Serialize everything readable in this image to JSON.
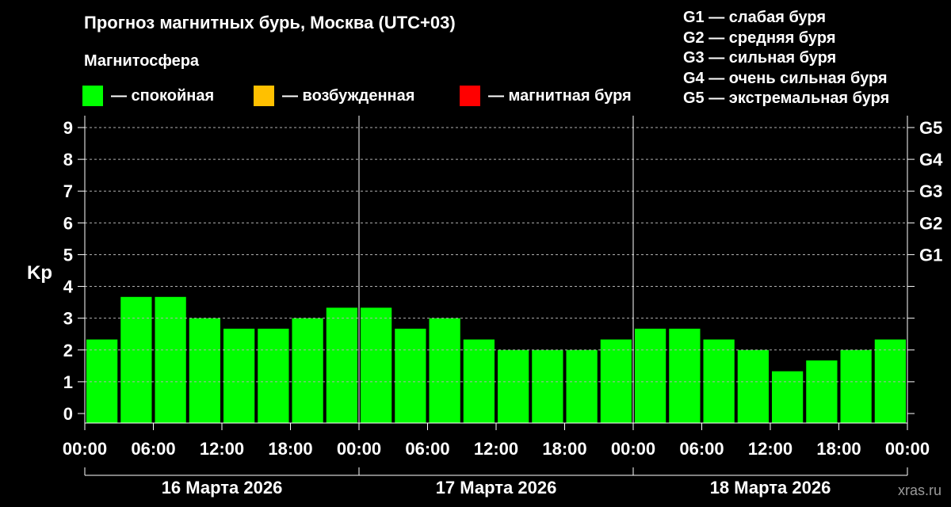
{
  "header": {
    "title": "Прогноз магнитных бурь, Москва (UTC+03)",
    "subtitle": "Магнитосфера"
  },
  "legend": [
    {
      "label": "— спокойная",
      "color": "#00ff00"
    },
    {
      "label": "— возбужденная",
      "color": "#ffc000"
    },
    {
      "label": "— магнитная буря",
      "color": "#ff0000"
    }
  ],
  "storm_scale": [
    "G1 — слабая буря",
    "G2 — средняя буря",
    "G3 — сильная буря",
    "G4 — очень сильная буря",
    "G5 — экстремальная буря"
  ],
  "watermark": "xras.ru",
  "chart_data": {
    "type": "bar",
    "ylabel": "Kp",
    "ylim": [
      0,
      9
    ],
    "yticks": [
      "0",
      "1",
      "2",
      "3",
      "4",
      "5",
      "6",
      "7",
      "8",
      "9"
    ],
    "right_ticks": [
      {
        "kp": 5,
        "label": "G1"
      },
      {
        "kp": 6,
        "label": "G2"
      },
      {
        "kp": 7,
        "label": "G3"
      },
      {
        "kp": 8,
        "label": "G4"
      },
      {
        "kp": 9,
        "label": "G5"
      }
    ],
    "xtick_labels": [
      "00:00",
      "06:00",
      "12:00",
      "18:00",
      "00:00",
      "06:00",
      "12:00",
      "18:00",
      "00:00",
      "06:00",
      "12:00",
      "18:00",
      "00:00"
    ],
    "days": [
      "16 Марта 2026",
      "17 Марта 2026",
      "18 Марта 2026"
    ],
    "grid": true,
    "bar_color": "#00ff00",
    "values": [
      2.33,
      3.67,
      3.67,
      3.0,
      2.67,
      2.67,
      3.0,
      3.33,
      3.33,
      2.67,
      3.0,
      2.33,
      2.0,
      2.0,
      2.0,
      2.33,
      2.67,
      2.67,
      2.33,
      2.0,
      1.33,
      1.67,
      2.0,
      2.33
    ]
  }
}
